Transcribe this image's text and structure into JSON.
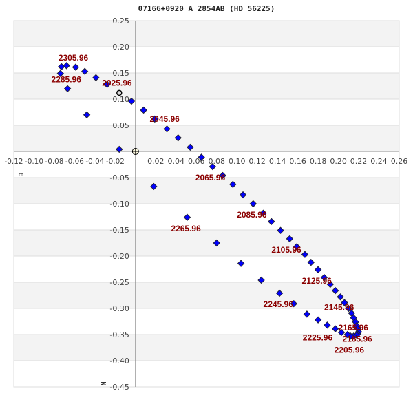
{
  "chart_data": {
    "type": "scatter",
    "title": "07166+0920 A  2854AB (HD 56225)",
    "xlabel": "E",
    "ylabel": "N",
    "xlim": [
      -0.12,
      0.26
    ],
    "ylim": [
      -0.45,
      0.25
    ],
    "x_ticks": [
      "-0.12",
      "-0.10",
      "-0.08",
      "-0.06",
      "-0.04",
      "-0.02",
      "0.02",
      "0.04",
      "0.06",
      "0.08",
      "0.10",
      "0.12",
      "0.14",
      "0.16",
      "0.18",
      "0.20",
      "0.22",
      "0.24",
      "0.26"
    ],
    "y_ticks": [
      "0.25",
      "0.20",
      "0.15",
      "0.10",
      "0.05",
      "-0.05",
      "-0.10",
      "-0.15",
      "-0.20",
      "-0.25",
      "-0.30",
      "-0.35",
      "-0.40",
      "-0.45"
    ],
    "grid": "horizontal bands",
    "colors": {
      "points": "#0000ff",
      "labels": "#8b0000",
      "band": "#f3f3f3"
    },
    "points": [
      [
        -0.073,
        0.162
      ],
      [
        -0.068,
        0.164
      ],
      [
        -0.059,
        0.161
      ],
      [
        -0.074,
        0.149
      ],
      [
        -0.05,
        0.153
      ],
      [
        -0.039,
        0.141
      ],
      [
        -0.028,
        0.128
      ],
      [
        -0.067,
        0.12
      ],
      [
        -0.048,
        0.07
      ],
      [
        -0.016,
        0.004
      ],
      [
        -0.004,
        0.096
      ],
      [
        0.008,
        0.079
      ],
      [
        0.019,
        0.062
      ],
      [
        0.031,
        0.043
      ],
      [
        0.042,
        0.026
      ],
      [
        0.054,
        0.008
      ],
      [
        0.065,
        -0.011
      ],
      [
        0.076,
        -0.029
      ],
      [
        0.086,
        -0.046
      ],
      [
        0.096,
        -0.063
      ],
      [
        0.106,
        -0.083
      ],
      [
        0.116,
        -0.1
      ],
      [
        0.126,
        -0.118
      ],
      [
        0.134,
        -0.134
      ],
      [
        0.143,
        -0.151
      ],
      [
        0.152,
        -0.167
      ],
      [
        0.159,
        -0.182
      ],
      [
        0.167,
        -0.197
      ],
      [
        0.173,
        -0.212
      ],
      [
        0.18,
        -0.226
      ],
      [
        0.186,
        -0.241
      ],
      [
        0.192,
        -0.254
      ],
      [
        0.197,
        -0.266
      ],
      [
        0.202,
        -0.278
      ],
      [
        0.206,
        -0.289
      ],
      [
        0.21,
        -0.3
      ],
      [
        0.213,
        -0.309
      ],
      [
        0.215,
        -0.318
      ],
      [
        0.217,
        -0.326
      ],
      [
        0.218,
        -0.333
      ],
      [
        0.219,
        -0.339
      ],
      [
        0.22,
        -0.345
      ],
      [
        0.219,
        -0.349
      ],
      [
        0.218,
        -0.351
      ],
      [
        0.215,
        -0.353
      ],
      [
        0.212,
        -0.353
      ],
      [
        0.209,
        -0.35
      ],
      [
        0.203,
        -0.346
      ],
      [
        0.197,
        -0.339
      ],
      [
        0.189,
        -0.332
      ],
      [
        0.18,
        -0.322
      ],
      [
        0.169,
        -0.311
      ],
      [
        0.156,
        -0.291
      ],
      [
        0.142,
        -0.271
      ],
      [
        0.124,
        -0.246
      ],
      [
        0.104,
        -0.214
      ],
      [
        0.08,
        -0.175
      ],
      [
        0.051,
        -0.126
      ],
      [
        0.018,
        -0.067
      ]
    ],
    "current_position": [
      -0.016,
      0.112
    ],
    "primary": [
      0,
      0
    ],
    "annotations": [
      {
        "text": "2305.96",
        "x": -0.076,
        "y": 0.18
      },
      {
        "text": "2285.96",
        "x": -0.083,
        "y": 0.139
      },
      {
        "text": "2025.96",
        "x": -0.033,
        "y": 0.132
      },
      {
        "text": "2045.96",
        "x": 0.014,
        "y": 0.063
      },
      {
        "text": "2065.96",
        "x": 0.059,
        "y": -0.049
      },
      {
        "text": "2085.96",
        "x": 0.1,
        "y": -0.12
      },
      {
        "text": "2265.96",
        "x": 0.035,
        "y": -0.146
      },
      {
        "text": "2105.96",
        "x": 0.134,
        "y": -0.187
      },
      {
        "text": "2125.96",
        "x": 0.164,
        "y": -0.246
      },
      {
        "text": "2245.96",
        "x": 0.126,
        "y": -0.291
      },
      {
        "text": "2145.96",
        "x": 0.186,
        "y": -0.297
      },
      {
        "text": "2165.96",
        "x": 0.2,
        "y": -0.338
      },
      {
        "text": "2225.96",
        "x": 0.173,
        "y": -0.353
      },
      {
        "text": "2185.96",
        "x": 0.204,
        "y": -0.364
      },
      {
        "text": "2205.96",
        "x": 0.196,
        "y": -0.372
      }
    ]
  }
}
